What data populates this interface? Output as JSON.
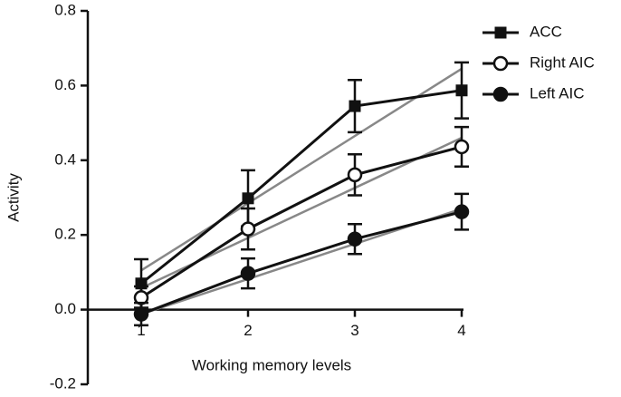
{
  "chart_data": {
    "type": "line",
    "x_label": "Working memory levels",
    "y_label": "Activity",
    "x": [
      1,
      2,
      3,
      4
    ],
    "xlim": [
      0.5,
      4
    ],
    "xticks": [
      1,
      2,
      3,
      4
    ],
    "ylim": [
      -0.2,
      0.8
    ],
    "yticks": [
      -0.2,
      {
        "value": 0,
        "label": "0.0"
      },
      0.2,
      0.4,
      0.6,
      0.8
    ],
    "series": [
      {
        "name": "ACC",
        "color": "#111111",
        "marker": "square",
        "values": [
          0.07,
          0.298,
          0.545,
          0.587
        ],
        "errors": [
          0.065,
          0.075,
          0.07,
          0.075
        ]
      },
      {
        "name": "Right AIC",
        "color": "#111111",
        "marker": "open-circle",
        "values": [
          0.032,
          0.216,
          0.361,
          0.436
        ],
        "errors": [
          0.03,
          0.055,
          0.055,
          0.053
        ]
      },
      {
        "name": "Left AIC",
        "color": "#111111",
        "marker": "circle",
        "values": [
          -0.012,
          0.097,
          0.189,
          0.262
        ],
        "errors": [
          0.03,
          0.04,
          0.04,
          0.048
        ]
      }
    ],
    "trend_lines": [
      {
        "color": "#888888",
        "x": [
          1,
          4
        ],
        "values": [
          0.105,
          0.645
        ]
      },
      {
        "color": "#888888",
        "x": [
          1,
          4
        ],
        "values": [
          0.058,
          0.46
        ]
      },
      {
        "color": "#888888",
        "x": [
          1,
          4
        ],
        "values": [
          -0.012,
          0.27
        ]
      }
    ]
  }
}
